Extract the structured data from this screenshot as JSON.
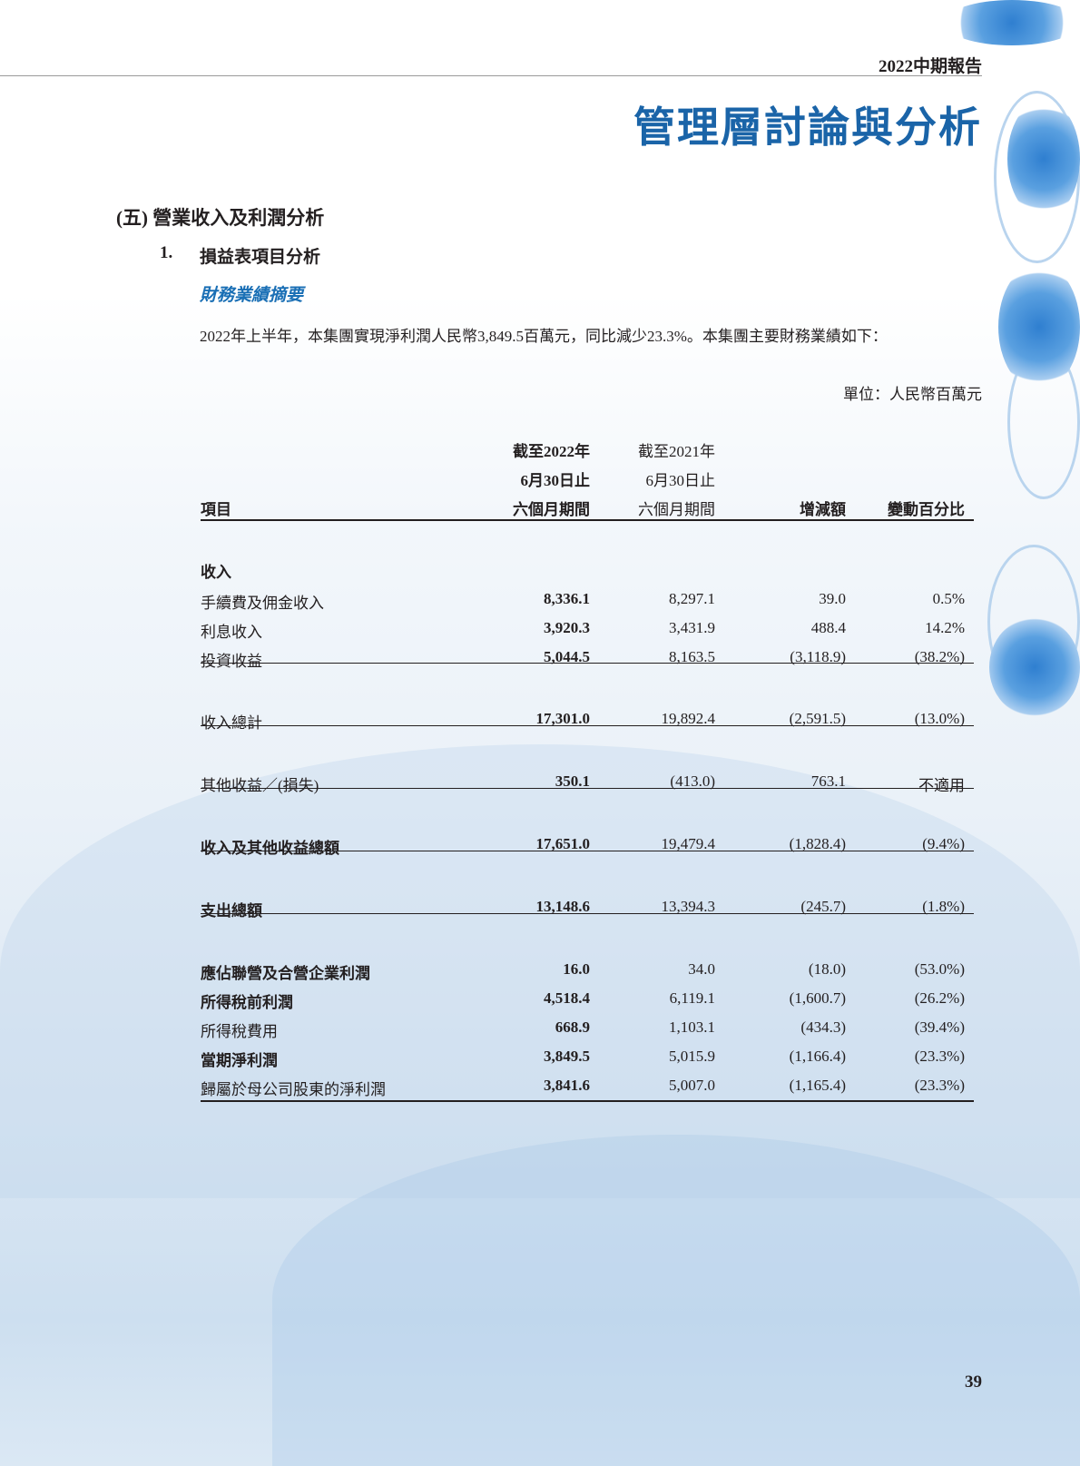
{
  "header": {
    "report": "2022中期報告",
    "title": "管理層討論與分析"
  },
  "section": {
    "title": "(五) 營業收入及利潤分析",
    "sub_number": "1.",
    "sub_title": "損益表項目分析",
    "italic_heading": "財務業績摘要",
    "paragraph": "2022年上半年，本集團實現淨利潤人民幣3,849.5百萬元，同比減少23.3%。本集團主要財務業績如下：",
    "unit": "單位：人民幣百萬元"
  },
  "table": {
    "headers": {
      "item": "項目",
      "col1": [
        "截至2022年",
        "6月30日止",
        "六個月期間"
      ],
      "col2": [
        "截至2021年",
        "6月30日止",
        "六個月期間"
      ],
      "col3": "增減額",
      "col4": "變動百分比"
    },
    "rows": [
      {
        "label": "收入",
        "v1": "",
        "v2": "",
        "v3": "",
        "v4": ""
      },
      {
        "label": "手續費及佣金收入",
        "v1": "8,336.1",
        "v2": "8,297.1",
        "v3": "39.0",
        "v4": "0.5%"
      },
      {
        "label": "利息收入",
        "v1": "3,920.3",
        "v2": "3,431.9",
        "v3": "488.4",
        "v4": "14.2%"
      },
      {
        "label": "投資收益",
        "v1": "5,044.5",
        "v2": "8,163.5",
        "v3": "(3,118.9)",
        "v4": "(38.2%)"
      },
      {
        "label": "收入總計",
        "v1": "17,301.0",
        "v2": "19,892.4",
        "v3": "(2,591.5)",
        "v4": "(13.0%)"
      },
      {
        "label": "其他收益／(損失)",
        "v1": "350.1",
        "v2": "(413.0)",
        "v3": "763.1",
        "v4": "不適用"
      },
      {
        "label": "收入及其他收益總額",
        "v1": "17,651.0",
        "v2": "19,479.4",
        "v3": "(1,828.4)",
        "v4": "(9.4%)"
      },
      {
        "label": "支出總額",
        "v1": "13,148.6",
        "v2": "13,394.3",
        "v3": "(245.7)",
        "v4": "(1.8%)"
      },
      {
        "label": "應佔聯營及合營企業利潤",
        "v1": "16.0",
        "v2": "34.0",
        "v3": "(18.0)",
        "v4": "(53.0%)"
      },
      {
        "label": "所得稅前利潤",
        "v1": "4,518.4",
        "v2": "6,119.1",
        "v3": "(1,600.7)",
        "v4": "(26.2%)"
      },
      {
        "label": "所得稅費用",
        "v1": "668.9",
        "v2": "1,103.1",
        "v3": "(434.3)",
        "v4": "(39.4%)"
      },
      {
        "label": "當期淨利潤",
        "v1": "3,849.5",
        "v2": "5,015.9",
        "v3": "(1,166.4)",
        "v4": "(23.3%)"
      },
      {
        "label": "歸屬於母公司股東的淨利潤",
        "v1": "3,841.6",
        "v2": "5,007.0",
        "v3": "(1,165.4)",
        "v4": "(23.3%)"
      }
    ]
  },
  "page_number": "39",
  "colors": {
    "title": "#1a64a8",
    "italic_heading": "#1a6fb5"
  }
}
